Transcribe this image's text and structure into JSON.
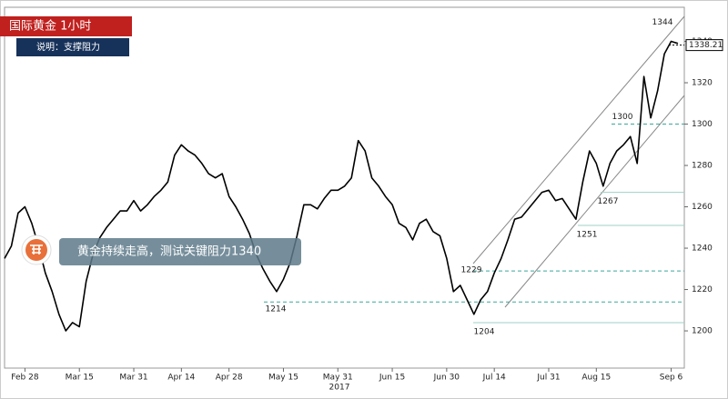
{
  "chart_data": {
    "type": "line",
    "title": "国际黄金  1小时",
    "subtitle": "说明：支撑阻力",
    "annotation": "黄金持续走高，测试关键阻力1340",
    "year_label": "2017",
    "categories": [
      null,
      null,
      null,
      "Feb 28",
      null,
      null,
      null,
      null,
      null,
      null,
      null,
      "Mar 15",
      null,
      null,
      null,
      null,
      null,
      null,
      null,
      "Mar 31",
      null,
      null,
      null,
      null,
      null,
      null,
      "Apr 14",
      null,
      null,
      null,
      null,
      null,
      null,
      "Apr 28",
      null,
      null,
      null,
      null,
      null,
      null,
      null,
      "May 15",
      null,
      null,
      null,
      null,
      null,
      null,
      null,
      "May 31",
      null,
      null,
      null,
      null,
      null,
      null,
      null,
      "Jun 15",
      null,
      null,
      null,
      null,
      null,
      null,
      null,
      "Jun 30",
      null,
      null,
      null,
      null,
      null,
      null,
      "Jul 14",
      null,
      null,
      null,
      null,
      null,
      null,
      null,
      "Jul 31",
      null,
      null,
      null,
      null,
      null,
      null,
      "Aug 15",
      null,
      null,
      null,
      null,
      null,
      null,
      null,
      null,
      null,
      null,
      "Sep 6",
      null
    ],
    "values": [
      1235,
      1241,
      1257,
      1260,
      1252,
      1241,
      1228,
      1219,
      1208,
      1200,
      1204,
      1202,
      1224,
      1237,
      1245,
      1250,
      1254,
      1258,
      1258,
      1263,
      1258,
      1261,
      1265,
      1268,
      1272,
      1285,
      1290,
      1287,
      1285,
      1281,
      1276,
      1274,
      1276,
      1265,
      1260,
      1254,
      1247,
      1237,
      1230,
      1224,
      1219,
      1225,
      1233,
      1246,
      1261,
      1261,
      1259,
      1264,
      1268,
      1268,
      1270,
      1274,
      1292,
      1287,
      1274,
      1270,
      1265,
      1261,
      1252,
      1250,
      1244,
      1252,
      1254,
      1248,
      1246,
      1235,
      1219,
      1222,
      1215,
      1208,
      1215,
      1219,
      1228,
      1235,
      1244,
      1254,
      1255,
      1259,
      1263,
      1267,
      1268,
      1263,
      1264,
      1259,
      1254,
      1272,
      1287,
      1281,
      1270,
      1281,
      1287,
      1290,
      1294,
      1281,
      1323,
      1303,
      1316,
      1334,
      1340,
      1339
    ],
    "color": "#000000",
    "last_price": 1338.21,
    "levels": [
      1344,
      1300,
      1267,
      1251,
      1229,
      1214,
      1204
    ],
    "ylim": [
      1182,
      1356.5
    ],
    "yticks": [
      1200,
      1220,
      1240,
      1260,
      1280,
      1300,
      1320,
      1340
    ]
  }
}
